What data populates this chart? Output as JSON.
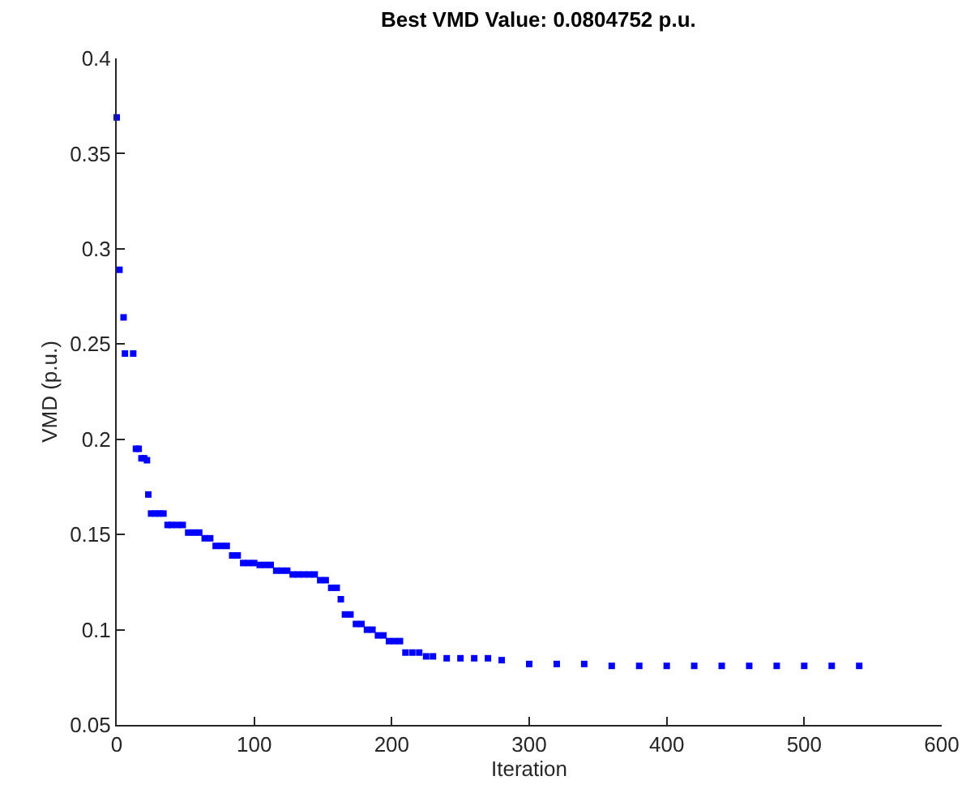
{
  "chart_data": {
    "type": "scatter",
    "title": "Best VMD Value: 0.0804752 p.u.",
    "xlabel": "Iteration",
    "ylabel": "VMD (p.u.)",
    "x": [
      0,
      2,
      5,
      6,
      12,
      14,
      16,
      18,
      20,
      22,
      23,
      25,
      28,
      31,
      34,
      37,
      40,
      44,
      48,
      52,
      56,
      60,
      64,
      68,
      72,
      76,
      80,
      84,
      88,
      92,
      96,
      100,
      104,
      108,
      112,
      116,
      120,
      124,
      128,
      132,
      136,
      140,
      144,
      148,
      152,
      156,
      160,
      163,
      166,
      170,
      174,
      178,
      182,
      186,
      190,
      194,
      198,
      202,
      206,
      210,
      215,
      220,
      225,
      230,
      240,
      250,
      260,
      270,
      280,
      300,
      320,
      340,
      360,
      380,
      400,
      420,
      440,
      460,
      480,
      500,
      520,
      540
    ],
    "series": [
      {
        "color": "#0000ff",
        "values": [
          0.369,
          0.289,
          0.264,
          0.245,
          0.245,
          0.195,
          0.195,
          0.19,
          0.19,
          0.189,
          0.171,
          0.161,
          0.161,
          0.161,
          0.161,
          0.155,
          0.155,
          0.155,
          0.155,
          0.151,
          0.151,
          0.151,
          0.148,
          0.148,
          0.144,
          0.144,
          0.144,
          0.139,
          0.139,
          0.135,
          0.135,
          0.135,
          0.134,
          0.134,
          0.134,
          0.131,
          0.131,
          0.131,
          0.129,
          0.129,
          0.129,
          0.129,
          0.129,
          0.126,
          0.126,
          0.122,
          0.122,
          0.116,
          0.108,
          0.108,
          0.103,
          0.103,
          0.1,
          0.1,
          0.097,
          0.097,
          0.094,
          0.094,
          0.094,
          0.088,
          0.088,
          0.088,
          0.086,
          0.086,
          0.085,
          0.085,
          0.085,
          0.085,
          0.084,
          0.082,
          0.082,
          0.082,
          0.081,
          0.081,
          0.081,
          0.081,
          0.081,
          0.081,
          0.081,
          0.081,
          0.081,
          0.081
        ]
      }
    ],
    "xlim": [
      0,
      600
    ],
    "xticks": [
      0,
      100,
      200,
      300,
      400,
      500,
      600
    ],
    "ylim": [
      0.05,
      0.4
    ],
    "yticks": [
      0.05,
      0.1,
      0.15,
      0.2,
      0.25,
      0.3,
      0.35,
      0.4
    ],
    "marker": "square"
  }
}
